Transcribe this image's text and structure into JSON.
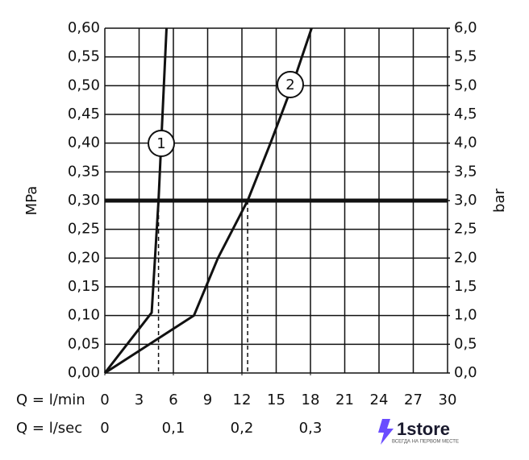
{
  "chart_data": {
    "type": "line",
    "y_label": "MPa",
    "y2_label": "bar",
    "x_label": "Q = l/min",
    "x2_label": "Q = l/sec",
    "xlim": [
      0,
      30
    ],
    "xticks": [
      0,
      3,
      6,
      9,
      12,
      15,
      18,
      21,
      24,
      27,
      30
    ],
    "x2lim": [
      0,
      0.5
    ],
    "x2ticks": [
      0,
      {
        "value": 0.1,
        "label": "0,1"
      },
      {
        "value": 0.2,
        "label": "0,2"
      },
      {
        "value": 0.3,
        "label": "0,3"
      }
    ],
    "ylim": [
      0,
      0.6
    ],
    "yticks": [
      {
        "value": 0,
        "label": "0,00"
      },
      {
        "value": 0.05,
        "label": "0,05"
      },
      {
        "value": 0.1,
        "label": "0,10"
      },
      {
        "value": 0.15,
        "label": "0,15"
      },
      {
        "value": 0.2,
        "label": "0,20"
      },
      {
        "value": 0.25,
        "label": "0,25"
      },
      {
        "value": 0.3,
        "label": "0,30"
      },
      {
        "value": 0.35,
        "label": "0,35"
      },
      {
        "value": 0.4,
        "label": "0,40"
      },
      {
        "value": 0.45,
        "label": "0,45"
      },
      {
        "value": 0.5,
        "label": "0,50"
      },
      {
        "value": 0.55,
        "label": "0,55"
      },
      {
        "value": 0.6,
        "label": "0,60"
      }
    ],
    "y2lim": [
      0,
      6
    ],
    "y2ticks": [
      {
        "value": 0,
        "label": "0,0"
      },
      {
        "value": 0.5,
        "label": "0,5"
      },
      {
        "value": 1,
        "label": "1,0"
      },
      {
        "value": 1.5,
        "label": "1,5"
      },
      {
        "value": 2,
        "label": "2,0"
      },
      {
        "value": 2.5,
        "label": "2,5"
      },
      {
        "value": 3,
        "label": "3,0"
      },
      {
        "value": 3.5,
        "label": "3,5"
      },
      {
        "value": 4,
        "label": "4,0"
      },
      {
        "value": 4.5,
        "label": "4,5"
      },
      {
        "value": 5,
        "label": "5,0"
      },
      {
        "value": 5.5,
        "label": "5,5"
      },
      {
        "value": 6,
        "label": "6,0"
      }
    ],
    "grid": true,
    "color": "#111111",
    "hline": 0.3,
    "drop_lines": [
      4.7,
      12.5
    ],
    "series": [
      {
        "name": "1",
        "x": [
          0,
          4.1,
          4.7,
          5.4
        ],
        "values": [
          0,
          0.105,
          0.3,
          0.6
        ]
      },
      {
        "name": "2",
        "x": [
          0,
          7.8,
          9.9,
          12.5,
          14.5,
          16.4,
          18.1
        ],
        "values": [
          0,
          0.1,
          0.2,
          0.3,
          0.4,
          0.5,
          0.6
        ]
      }
    ]
  },
  "watermark": {
    "brand": "1store",
    "tagline": "ВСЕГДА НА ПЕРВОМ МЕСТЕ"
  }
}
